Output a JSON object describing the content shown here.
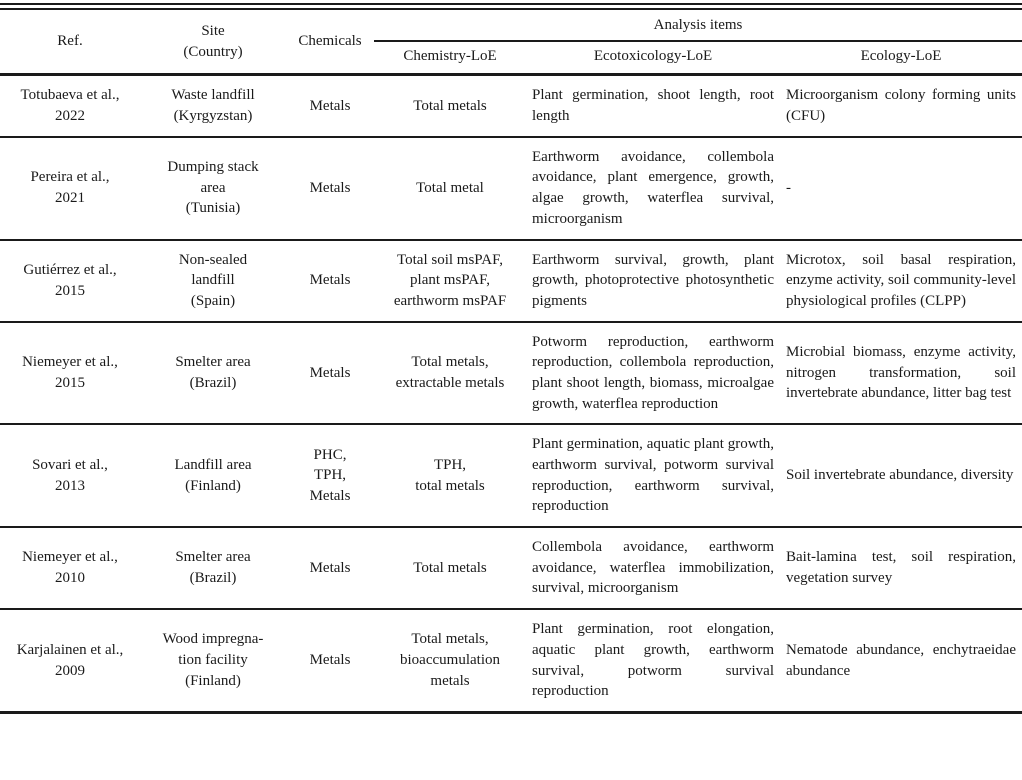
{
  "table": {
    "headers": {
      "ref": "Ref.",
      "site": "Site\n(Country)",
      "chemicals": "Chemicals",
      "analysis_items": "Analysis items",
      "chemistry_loe": "Chemistry-LoE",
      "ecotoxicology_loe": "Ecotoxicology-LoE",
      "ecology_loe": "Ecology-LoE"
    },
    "rows": [
      {
        "ref": "Totubaeva et al.,\n2022",
        "site": "Waste landfill\n(Kyrgyzstan)",
        "chemicals": "Metals",
        "chemistry": "Total metals",
        "ecotoxicology": "Plant germination, shoot length, root length",
        "ecology": "Microorganism colony forming units (CFU)"
      },
      {
        "ref": "Pereira et al.,\n2021",
        "site": "Dumping stack\narea\n(Tunisia)",
        "chemicals": "Metals",
        "chemistry": "Total metal",
        "ecotoxicology": "Earthworm avoidance, collembola avoidance, plant emergence, growth, algae growth, waterflea survival, microorganism",
        "ecology": "-"
      },
      {
        "ref": "Gutiérrez et al.,\n2015",
        "site": "Non-sealed\nlandfill\n(Spain)",
        "chemicals": "Metals",
        "chemistry": "Total soil msPAF,\nplant msPAF,\nearthworm msPAF",
        "ecotoxicology": "Earthworm survival, growth, plant growth, photoprotective photosynthetic pigments",
        "ecology": "Microtox, soil basal respiration, enzyme activity, soil community-level physiological profiles (CLPP)"
      },
      {
        "ref": "Niemeyer et al.,\n2015",
        "site": "Smelter area\n(Brazil)",
        "chemicals": "Metals",
        "chemistry": "Total metals,\nextractable metals",
        "ecotoxicology": "Potworm reproduction, earthworm reproduction, collembola reproduction, plant shoot length, biomass, microalgae growth, waterflea reproduction",
        "ecology": "Microbial biomass, enzyme activity, nitrogen transformation, soil invertebrate abundance, litter bag test"
      },
      {
        "ref": "Sovari et al.,\n2013",
        "site": "Landfill area\n(Finland)",
        "chemicals": "PHC,\nTPH,\nMetals",
        "chemistry": "TPH,\ntotal metals",
        "ecotoxicology": "Plant germination, aquatic plant growth, earthworm survival, potworm survival reproduction, earthworm survival, reproduction",
        "ecology": "Soil invertebrate abundance, diversity"
      },
      {
        "ref": "Niemeyer et al.,\n2010",
        "site": "Smelter area\n(Brazil)",
        "chemicals": "Metals",
        "chemistry": "Total metals",
        "ecotoxicology": "Collembola avoidance, earthworm avoidance, waterflea immobilization, survival, microorganism",
        "ecology": "Bait-lamina test, soil respiration, vegetation survey"
      },
      {
        "ref": "Karjalainen et al.,\n2009",
        "site": "Wood impregna-\ntion facility\n(Finland)",
        "chemicals": "Metals",
        "chemistry": "Total metals,\nbioaccumulation\nmetals",
        "ecotoxicology": "Plant germination, root elongation, aquatic plant growth, earthworm survival, potworm survival reproduction",
        "ecology": "Nematode abundance, enchytraeidae abundance"
      }
    ]
  }
}
